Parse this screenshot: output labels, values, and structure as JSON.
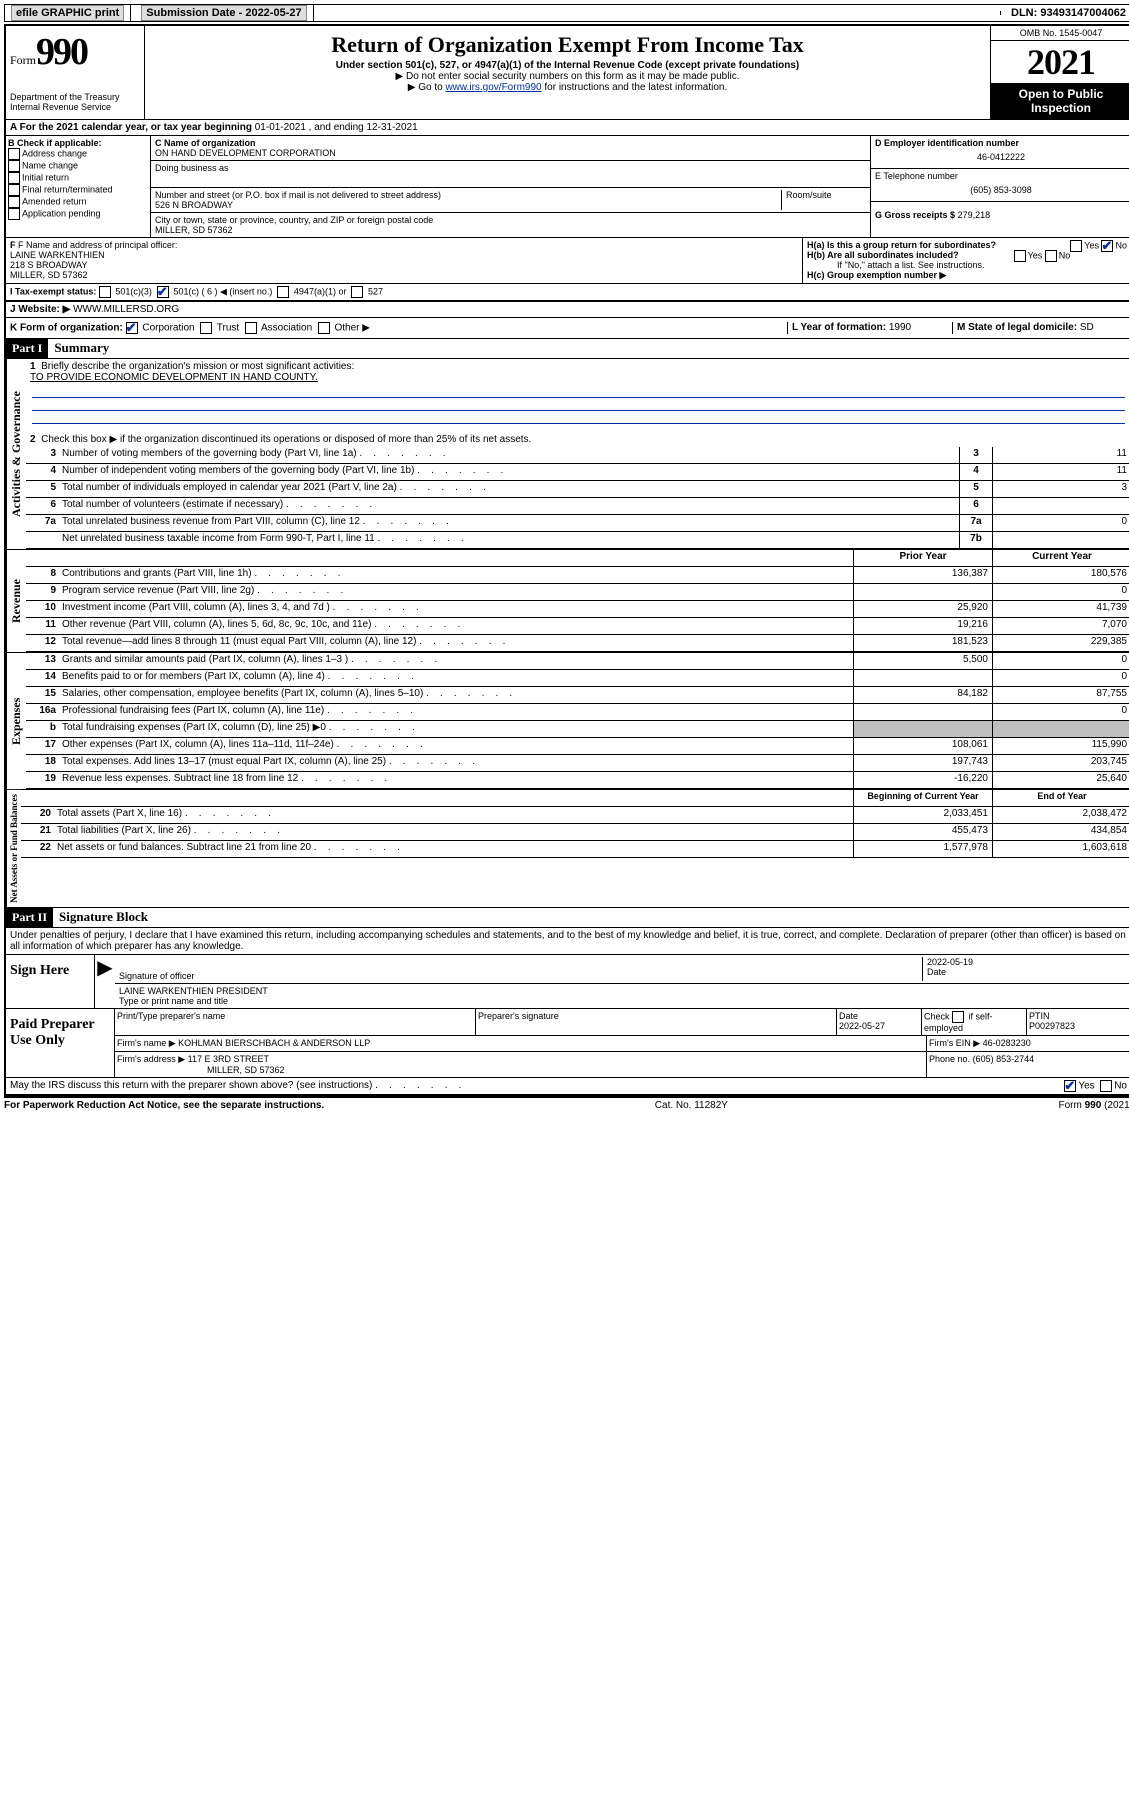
{
  "topbar": {
    "efile": "efile GRAPHIC print",
    "sub_label": "Submission Date -",
    "sub_date": "2022-05-27",
    "dln_label": "DLN:",
    "dln": "93493147004062"
  },
  "header": {
    "form_word": "Form",
    "form_num": "990",
    "dept": "Department of the Treasury",
    "irs": "Internal Revenue Service",
    "title": "Return of Organization Exempt From Income Tax",
    "sub1": "Under section 501(c), 527, or 4947(a)(1) of the Internal Revenue Code (except private foundations)",
    "sub2": "▶ Do not enter social security numbers on this form as it may be made public.",
    "sub3_pre": "▶ Go to ",
    "sub3_link": "www.irs.gov/Form990",
    "sub3_post": " for instructions and the latest information.",
    "omb": "OMB No. 1545-0047",
    "year": "2021",
    "open": "Open to Public Inspection"
  },
  "lineA": {
    "label": "A For the 2021 calendar year, or tax year beginning ",
    "begin": "01-01-2021",
    "mid": " , and ending ",
    "end": "12-31-2021"
  },
  "B": {
    "label": "B Check if applicable:",
    "opts": [
      "Address change",
      "Name change",
      "Initial return",
      "Final return/terminated",
      "Amended return",
      "Application pending"
    ]
  },
  "C": {
    "name_label": "C Name of organization",
    "name": "ON HAND DEVELOPMENT CORPORATION",
    "dba_label": "Doing business as",
    "street_label": "Number and street (or P.O. box if mail is not delivered to street address)",
    "room_label": "Room/suite",
    "street": "526 N BROADWAY",
    "city_label": "City or town, state or province, country, and ZIP or foreign postal code",
    "city": "MILLER, SD  57362"
  },
  "D": {
    "label": "D Employer identification number",
    "val": "46-0412222"
  },
  "E": {
    "label": "E Telephone number",
    "val": "(605) 853-3098"
  },
  "G": {
    "label": "G Gross receipts $",
    "val": "279,218"
  },
  "F": {
    "label": "F Name and address of principal officer:",
    "name": "LAINE WARKENTHIEN",
    "addr1": "218 S BROADWAY",
    "addr2": "MILLER, SD  57362"
  },
  "H": {
    "a_label": "H(a)  Is this a group return for subordinates?",
    "b_label": "H(b)  Are all subordinates included?",
    "note": "If \"No,\" attach a list. See instructions.",
    "c_label": "H(c)  Group exemption number ▶",
    "yes": "Yes",
    "no": "No"
  },
  "I": {
    "label": "I    Tax-exempt status:",
    "o1": "501(c)(3)",
    "o2": "501(c) ( 6 ) ◀ (insert no.)",
    "o3": "4947(a)(1) or",
    "o4": "527"
  },
  "J": {
    "label": "J    Website: ▶",
    "val": "WWW.MILLERSD.ORG"
  },
  "K": {
    "label": "K Form of organization:",
    "o1": "Corporation",
    "o2": "Trust",
    "o3": "Association",
    "o4": "Other ▶"
  },
  "L": {
    "label": "L Year of formation:",
    "val": "1990"
  },
  "M": {
    "label": "M State of legal domicile:",
    "val": "SD"
  },
  "partI": {
    "tag": "Part I",
    "title": "Summary"
  },
  "q1": {
    "num": "1",
    "text": "Briefly describe the organization's mission or most significant activities:",
    "answer": "TO PROVIDE ECONOMIC DEVELOPMENT IN HAND COUNTY."
  },
  "q2": {
    "num": "2",
    "text": "Check this box ▶        if the organization discontinued its operations or disposed of more than 25% of its net assets."
  },
  "gov_rows": [
    {
      "n": "3",
      "d": "Number of voting members of the governing body (Part VI, line 1a)",
      "box": "3",
      "v": "11"
    },
    {
      "n": "4",
      "d": "Number of independent voting members of the governing body (Part VI, line 1b)",
      "box": "4",
      "v": "11"
    },
    {
      "n": "5",
      "d": "Total number of individuals employed in calendar year 2021 (Part V, line 2a)",
      "box": "5",
      "v": "3"
    },
    {
      "n": "6",
      "d": "Total number of volunteers (estimate if necessary)",
      "box": "6",
      "v": ""
    },
    {
      "n": "7a",
      "d": "Total unrelated business revenue from Part VIII, column (C), line 12",
      "box": "7a",
      "v": "0"
    },
    {
      "n": "",
      "d": "Net unrelated business taxable income from Form 990-T, Part I, line 11",
      "box": "7b",
      "v": ""
    }
  ],
  "col_headers": {
    "prior": "Prior Year",
    "current": "Current Year",
    "beg": "Beginning of Current Year",
    "end": "End of Year"
  },
  "rev_rows": [
    {
      "n": "8",
      "d": "Contributions and grants (Part VIII, line 1h)",
      "p": "136,387",
      "c": "180,576"
    },
    {
      "n": "9",
      "d": "Program service revenue (Part VIII, line 2g)",
      "p": "",
      "c": "0"
    },
    {
      "n": "10",
      "d": "Investment income (Part VIII, column (A), lines 3, 4, and 7d )",
      "p": "25,920",
      "c": "41,739"
    },
    {
      "n": "11",
      "d": "Other revenue (Part VIII, column (A), lines 5, 6d, 8c, 9c, 10c, and 11e)",
      "p": "19,216",
      "c": "7,070"
    },
    {
      "n": "12",
      "d": "Total revenue—add lines 8 through 11 (must equal Part VIII, column (A), line 12)",
      "p": "181,523",
      "c": "229,385"
    }
  ],
  "exp_rows": [
    {
      "n": "13",
      "d": "Grants and similar amounts paid (Part IX, column (A), lines 1–3 )",
      "p": "5,500",
      "c": "0"
    },
    {
      "n": "14",
      "d": "Benefits paid to or for members (Part IX, column (A), line 4)",
      "p": "",
      "c": "0"
    },
    {
      "n": "15",
      "d": "Salaries, other compensation, employee benefits (Part IX, column (A), lines 5–10)",
      "p": "84,182",
      "c": "87,755"
    },
    {
      "n": "16a",
      "d": "Professional fundraising fees (Part IX, column (A), line 11e)",
      "p": "",
      "c": "0"
    },
    {
      "n": "b",
      "d": "Total fundraising expenses (Part IX, column (D), line 25) ▶0",
      "p": "SHADE",
      "c": "SHADE"
    },
    {
      "n": "17",
      "d": "Other expenses (Part IX, column (A), lines 11a–11d, 11f–24e)",
      "p": "108,061",
      "c": "115,990"
    },
    {
      "n": "18",
      "d": "Total expenses. Add lines 13–17 (must equal Part IX, column (A), line 25)",
      "p": "197,743",
      "c": "203,745"
    },
    {
      "n": "19",
      "d": "Revenue less expenses. Subtract line 18 from line 12",
      "p": "-16,220",
      "c": "25,640"
    }
  ],
  "net_rows": [
    {
      "n": "20",
      "d": "Total assets (Part X, line 16)",
      "p": "2,033,451",
      "c": "2,038,472"
    },
    {
      "n": "21",
      "d": "Total liabilities (Part X, line 26)",
      "p": "455,473",
      "c": "434,854"
    },
    {
      "n": "22",
      "d": "Net assets or fund balances. Subtract line 21 from line 20",
      "p": "1,577,978",
      "c": "1,603,618"
    }
  ],
  "side": {
    "gov": "Activities & Governance",
    "rev": "Revenue",
    "exp": "Expenses",
    "net": "Net Assets or Fund Balances"
  },
  "partII": {
    "tag": "Part II",
    "title": "Signature Block"
  },
  "penalties": "Under penalties of perjury, I declare that I have examined this return, including accompanying schedules and statements, and to the best of my knowledge and belief, it is true, correct, and complete. Declaration of preparer (other than officer) is based on all information of which preparer has any knowledge.",
  "sign": {
    "here": "Sign Here",
    "sig_label": "Signature of officer",
    "date_label": "Date",
    "date": "2022-05-19",
    "name": "LAINE WARKENTHIEN PRESIDENT",
    "name_label": "Type or print name and title"
  },
  "paid": {
    "label": "Paid Preparer Use Only",
    "h1": "Print/Type preparer's name",
    "h2": "Preparer's signature",
    "h3": "Date",
    "h4": "Check        if self-employed",
    "h5": "PTIN",
    "date": "2022-05-27",
    "ptin": "P00297823",
    "firm_label": "Firm's name    ▶",
    "firm": "KOHLMAN BIERSCHBACH & ANDERSON LLP",
    "ein_label": "Firm's EIN ▶",
    "ein": "46-0283230",
    "addr_label": "Firm's address ▶",
    "addr1": "117 E 3RD STREET",
    "addr2": "MILLER, SD  57362",
    "phone_label": "Phone no.",
    "phone": "(605) 853-2744"
  },
  "discuss": {
    "text": "May the IRS discuss this return with the preparer shown above? (see instructions)",
    "yes": "Yes",
    "no": "No"
  },
  "footer": {
    "left": "For Paperwork Reduction Act Notice, see the separate instructions.",
    "mid": "Cat. No. 11282Y",
    "right": "Form 990 (2021)"
  }
}
